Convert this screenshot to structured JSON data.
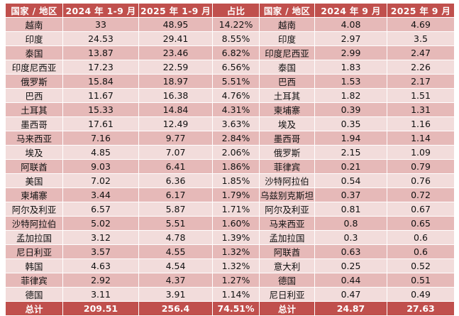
{
  "table": {
    "headers": [
      "国家 / 地区",
      "2024 年 1-9 月",
      "2025 年 1-9 月",
      "占比",
      "国家 / 地区",
      "2024 年 9 月",
      "2025 年 9 月"
    ],
    "rows": [
      [
        "越南",
        "33",
        "48.95",
        "14.22%",
        "越南",
        "4.08",
        "4.69"
      ],
      [
        "印度",
        "24.53",
        "29.41",
        "8.55%",
        "印度",
        "2.97",
        "3.5"
      ],
      [
        "泰国",
        "13.87",
        "23.46",
        "6.82%",
        "印度尼西亚",
        "2.99",
        "2.47"
      ],
      [
        "印度尼西亚",
        "17.23",
        "22.59",
        "6.56%",
        "泰国",
        "1.83",
        "2.26"
      ],
      [
        "俄罗斯",
        "15.84",
        "18.97",
        "5.51%",
        "巴西",
        "1.53",
        "2.17"
      ],
      [
        "巴西",
        "11.67",
        "16.38",
        "4.76%",
        "土耳其",
        "1.82",
        "1.51"
      ],
      [
        "土耳其",
        "15.33",
        "14.84",
        "4.31%",
        "柬埔寨",
        "0.39",
        "1.31"
      ],
      [
        "墨西哥",
        "17.61",
        "12.49",
        "3.63%",
        "埃及",
        "0.35",
        "1.16"
      ],
      [
        "马来西亚",
        "7.16",
        "9.77",
        "2.84%",
        "墨西哥",
        "1.94",
        "1.14"
      ],
      [
        "埃及",
        "4.85",
        "7.07",
        "2.06%",
        "俄罗斯",
        "2.15",
        "1.09"
      ],
      [
        "阿联酋",
        "9.03",
        "6.41",
        "1.86%",
        "菲律宾",
        "0.21",
        "0.79"
      ],
      [
        "美国",
        "7.02",
        "6.36",
        "1.85%",
        "沙特阿拉伯",
        "0.54",
        "0.76"
      ],
      [
        "柬埔寨",
        "3.44",
        "6.17",
        "1.79%",
        "乌兹别克斯坦",
        "0.37",
        "0.72"
      ],
      [
        "阿尔及利亚",
        "6.57",
        "5.87",
        "1.71%",
        "阿尔及利亚",
        "0.81",
        "0.67"
      ],
      [
        "沙特阿拉伯",
        "5.02",
        "5.51",
        "1.60%",
        "马来西亚",
        "0.8",
        "0.65"
      ],
      [
        "孟加拉国",
        "3.12",
        "4.78",
        "1.39%",
        "孟加拉国",
        "0.3",
        "0.6"
      ],
      [
        "尼日利亚",
        "3.57",
        "4.55",
        "1.32%",
        "阿联酋",
        "0.63",
        "0.6"
      ],
      [
        "韩国",
        "4.63",
        "4.54",
        "1.32%",
        "意大利",
        "0.25",
        "0.52"
      ],
      [
        "菲律宾",
        "2.92",
        "4.37",
        "1.27%",
        "德国",
        "0.44",
        "0.51"
      ],
      [
        "德国",
        "3.11",
        "3.91",
        "1.14%",
        "尼日利亚",
        "0.47",
        "0.49"
      ]
    ],
    "total": [
      "总计",
      "209.51",
      "256.4",
      "74.51%",
      "总计",
      "24.87",
      "27.63"
    ]
  },
  "colors": {
    "header_bg": "#c0504d",
    "row_dark": "#e6b9b8",
    "row_light": "#f2dcdb"
  }
}
